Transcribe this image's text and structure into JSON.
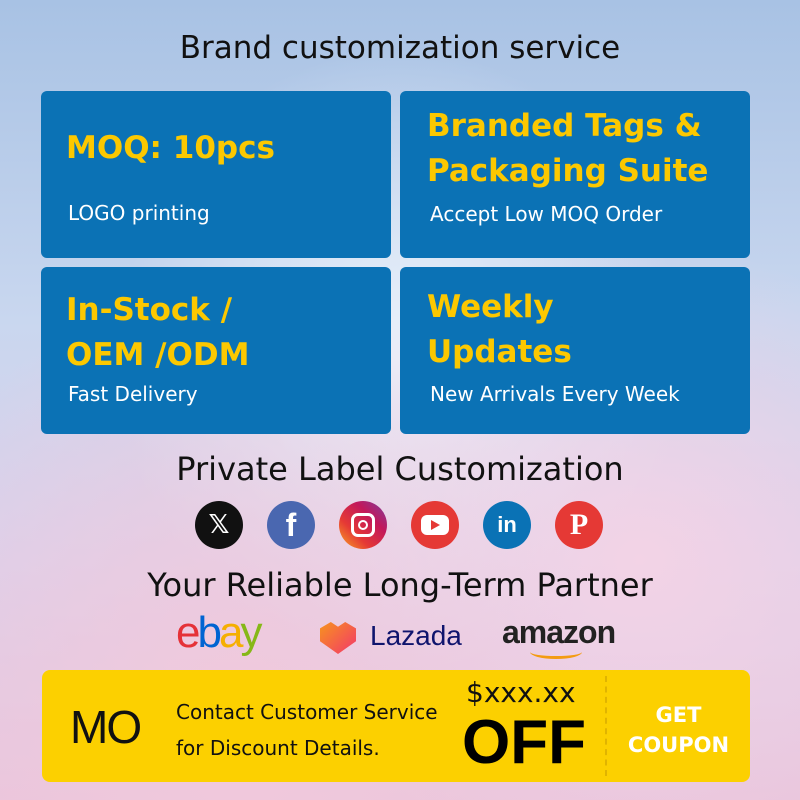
{
  "header": {
    "title": "Brand customization service"
  },
  "cards": [
    {
      "heading": "MOQ: 10pcs",
      "sub": "LOGO printing"
    },
    {
      "heading": "Branded Tags &\nPackaging Suite",
      "sub": "Accept Low MOQ Order"
    },
    {
      "heading": "In-Stock /\nOEM /ODM",
      "sub": "Fast Delivery"
    },
    {
      "heading": "Weekly\nUpdates",
      "sub": "New Arrivals Every Week"
    }
  ],
  "section2": {
    "title": "Private Label Customization"
  },
  "social": [
    {
      "icon": "x-icon",
      "color": "#111111"
    },
    {
      "icon": "facebook-icon",
      "color": "#4a67b0"
    },
    {
      "icon": "instagram-icon",
      "color": "#d6307d"
    },
    {
      "icon": "youtube-icon",
      "color": "#e53935"
    },
    {
      "icon": "linkedin-icon",
      "color": "#0a72b5"
    },
    {
      "icon": "pinterest-icon",
      "color": "#e53935"
    }
  ],
  "section3": {
    "title": "Your Reliable Long-Term Partner"
  },
  "marketplaces": {
    "ebay": "ebay",
    "lazada": "Lazada",
    "amazon": "amazon"
  },
  "coupon": {
    "logo": "MO",
    "line1": "Contact Customer Service",
    "line2": "for Discount Details.",
    "amount": "$xxx.xx",
    "off": "OFF",
    "cta1": "GET",
    "cta2": "COUPON"
  },
  "colors": {
    "card": "#0b72b5",
    "accent": "#fcc800",
    "coupon": "#fcd000"
  }
}
